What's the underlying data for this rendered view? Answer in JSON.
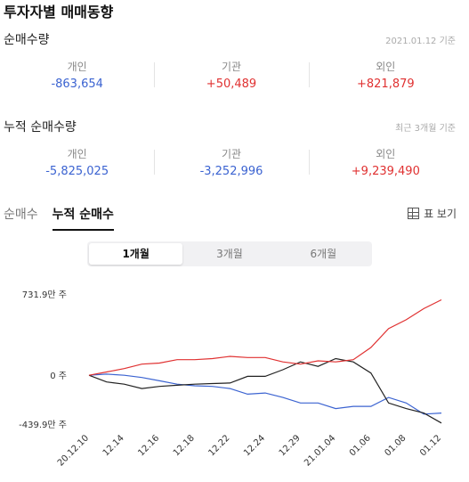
{
  "header": {
    "title": "투자자별 매매동향"
  },
  "net": {
    "title": "순매수량",
    "note": "2021.01.12 기준",
    "items": [
      {
        "label": "개인",
        "value": "-863,654"
      },
      {
        "label": "기관",
        "value": "+50,489"
      },
      {
        "label": "외인",
        "value": "+821,879"
      }
    ]
  },
  "cumulative": {
    "title": "누적 순매수량",
    "note": "최근 3개월 기준",
    "items": [
      {
        "label": "개인",
        "value": "-5,825,025"
      },
      {
        "label": "기관",
        "value": "-3,252,996"
      },
      {
        "label": "외인",
        "value": "+9,239,490"
      }
    ]
  },
  "tabs": [
    {
      "label": "순매수"
    },
    {
      "label": "누적 순매수"
    }
  ],
  "table_button": {
    "label": "표 보기",
    "icon": "table-grid-icon"
  },
  "periods": [
    {
      "label": "1개월"
    },
    {
      "label": "3개월"
    },
    {
      "label": "6개월"
    }
  ],
  "colors": {
    "individual": "#3b63d1",
    "institution": "#222222",
    "foreign": "#e03131",
    "negative": "#3b63d1",
    "positive": "#e03131"
  },
  "chart_data": {
    "type": "line",
    "y_tick_labels": [
      "731.9만 주",
      "0 주",
      "-439.9만 주"
    ],
    "y_ticks": [
      731.9,
      0,
      -439.9
    ],
    "ylim": [
      -439.9,
      731.9
    ],
    "x_tick_labels": [
      "20.12.10",
      "12.14",
      "12.16",
      "12.18",
      "12.22",
      "12.24",
      "12.29",
      "21.01.04",
      "01.06",
      "01.08",
      "01.12"
    ],
    "x": [
      "20.12.10",
      "12.11",
      "12.14",
      "12.15",
      "12.16",
      "12.17",
      "12.18",
      "12.21",
      "12.22",
      "12.23",
      "12.24",
      "12.28",
      "12.29",
      "12.30",
      "21.01.04",
      "01.05",
      "01.06",
      "01.07",
      "01.08",
      "01.11",
      "01.12"
    ],
    "series": [
      {
        "color": "#3b63d1",
        "values": [
          0,
          10,
          0,
          -20,
          -50,
          -80,
          -95,
          -100,
          -120,
          -170,
          -160,
          -200,
          -250,
          -250,
          -300,
          -280,
          -280,
          -200,
          -250,
          -350,
          -340
        ]
      },
      {
        "color": "#222222",
        "values": [
          0,
          -60,
          -80,
          -120,
          -100,
          -90,
          -80,
          -75,
          -70,
          -10,
          -10,
          50,
          120,
          80,
          150,
          120,
          20,
          -250,
          -300,
          -340,
          -430
        ]
      },
      {
        "color": "#e03131",
        "values": [
          0,
          30,
          60,
          100,
          110,
          140,
          140,
          150,
          170,
          160,
          160,
          120,
          100,
          130,
          120,
          140,
          250,
          420,
          500,
          600,
          680
        ]
      }
    ]
  }
}
